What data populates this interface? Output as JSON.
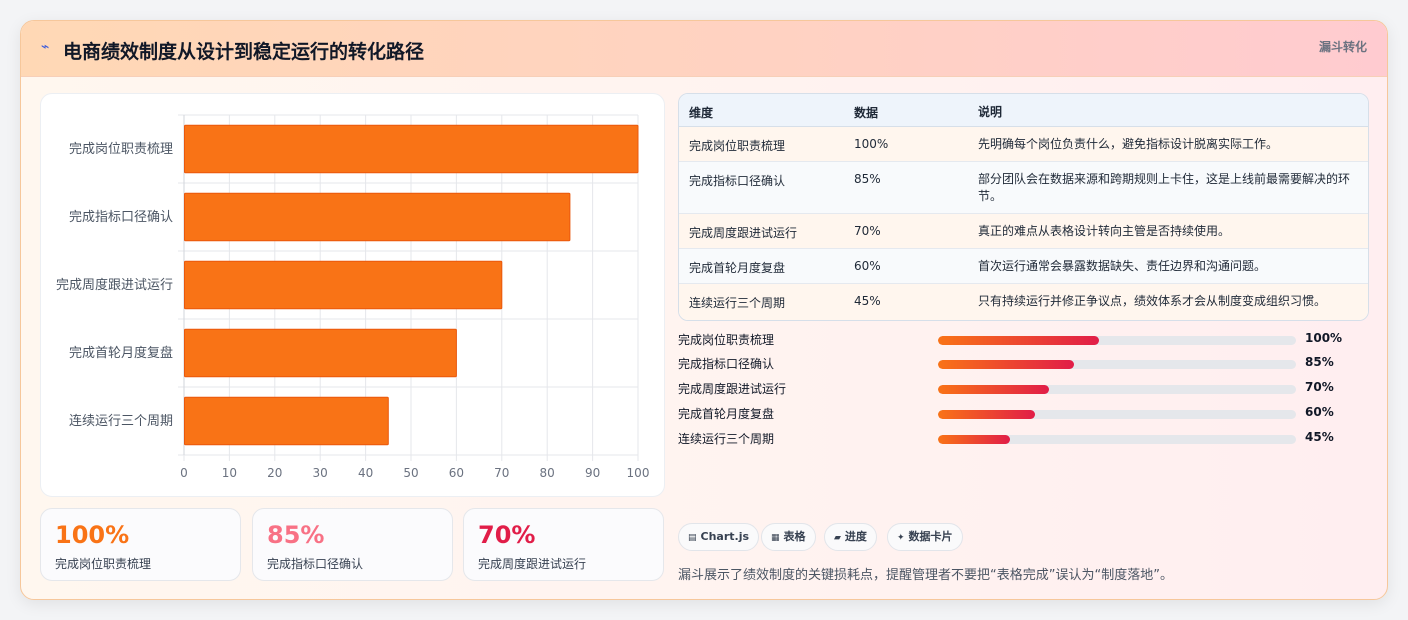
{
  "header": {
    "title": "电商绩效制度从设计到稳定运行的转化路径",
    "tag": "漏斗转化",
    "bolt_icon": "lightning-icon"
  },
  "chart_data": {
    "type": "bar",
    "orientation": "horizontal",
    "categories": [
      "完成岗位职责梳理",
      "完成指标口径确认",
      "完成周度跟进试运行",
      "完成首轮月度复盘",
      "连续运行三个周期"
    ],
    "values": [
      100,
      85,
      70,
      60,
      45
    ],
    "xlim": [
      0,
      100
    ],
    "xticks": [
      "0",
      "10",
      "20",
      "30",
      "40",
      "50",
      "60",
      "70",
      "80",
      "90",
      "100"
    ],
    "bar_color": "#f97316",
    "grid": true,
    "title": "",
    "xlabel": "",
    "ylabel": ""
  },
  "kpis": [
    {
      "value": "100%",
      "label": "完成岗位职责梳理",
      "color": "#f97316"
    },
    {
      "value": "85%",
      "label": "完成指标口径确认",
      "color": "#f87185"
    },
    {
      "value": "70%",
      "label": "完成周度跟进试运行",
      "color": "#e11d48"
    }
  ],
  "table": {
    "headers": [
      "维度",
      "数据",
      "说明"
    ],
    "rows": [
      {
        "dim": "完成岗位职责梳理",
        "data": "100%",
        "desc": "先明确每个岗位负责什么，避免指标设计脱离实际工作。"
      },
      {
        "dim": "完成指标口径确认",
        "data": "85%",
        "desc": "部分团队会在数据来源和跨期规则上卡住，这是上线前最需要解决的环节。"
      },
      {
        "dim": "完成周度跟进试运行",
        "data": "70%",
        "desc": "真正的难点从表格设计转向主管是否持续使用。"
      },
      {
        "dim": "完成首轮月度复盘",
        "data": "60%",
        "desc": "首次运行通常会暴露数据缺失、责任边界和沟通问题。"
      },
      {
        "dim": "连续运行三个周期",
        "data": "45%",
        "desc": "只有持续运行并修正争议点，绩效体系才会从制度变成组织习惯。"
      }
    ]
  },
  "progress": [
    {
      "label": "完成岗位职责梳理",
      "value_text": "100%",
      "fraction": 0.45
    },
    {
      "label": "完成指标口径确认",
      "value_text": "85%",
      "fraction": 0.38
    },
    {
      "label": "完成周度跟进试运行",
      "value_text": "70%",
      "fraction": 0.31
    },
    {
      "label": "完成首轮月度复盘",
      "value_text": "60%",
      "fraction": 0.27
    },
    {
      "label": "连续运行三个周期",
      "value_text": "45%",
      "fraction": 0.2
    }
  ],
  "chips": [
    {
      "icon": "▤",
      "label": "Chart.js"
    },
    {
      "icon": "▦",
      "label": "表格"
    },
    {
      "icon": "▰",
      "label": "进度"
    },
    {
      "icon": "✦",
      "label": "数据卡片"
    }
  ],
  "footnote": "漏斗展示了绩效制度的关键损耗点，提醒管理者不要把“表格完成”误认为“制度落地”。"
}
